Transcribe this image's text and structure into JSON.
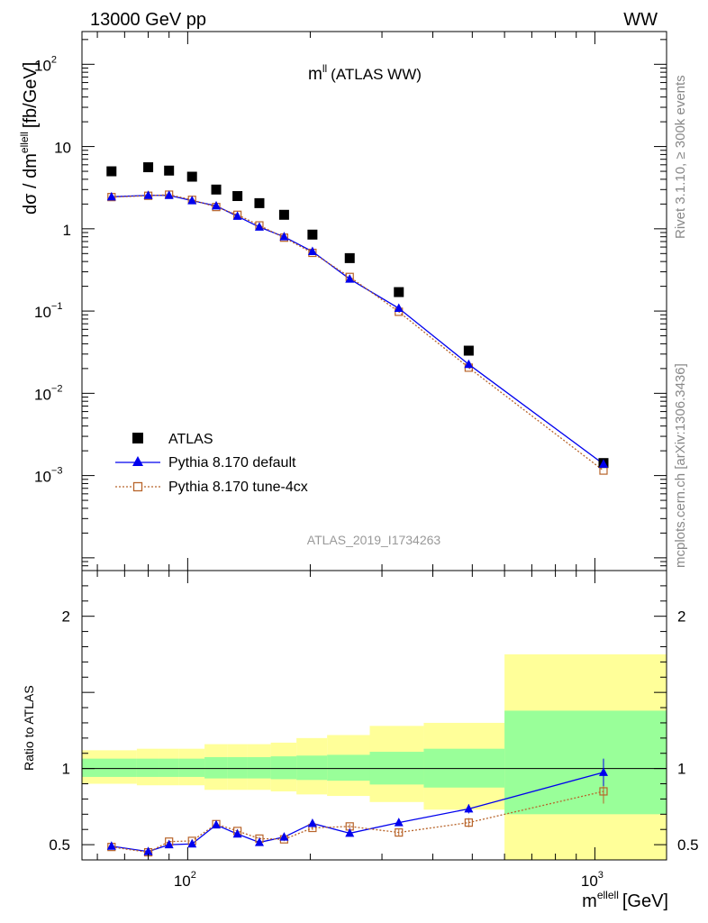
{
  "header": {
    "left": "13000 GeV pp",
    "right": "WW"
  },
  "side": {
    "rivet": "Rivet 3.1.10, ≥ 300k events",
    "mcplots": "mcplots.cern.ch [arXiv:1306.3436]"
  },
  "watermark": "ATLAS_2019_I1734263",
  "chart_data": {
    "type": "scatter",
    "title": "m",
    "title_sup": "ll",
    "title_suffix": "(ATLAS WW)",
    "xlabel": "m",
    "xlabel_sup": "ellell",
    "xlabel_unit": "[GeV]",
    "ylabel": "dσ / dm",
    "ylabel_sup": "ellell",
    "ylabel_unit": "[fb/GeV]",
    "xscale": "log",
    "yscale": "log",
    "xlim": [
      55,
      1500
    ],
    "ylim": [
      7e-05,
      250
    ],
    "x_ticks": [
      {
        "value": 100,
        "base": "10",
        "exp": "2"
      },
      {
        "value": 1000,
        "base": "10",
        "exp": "3"
      }
    ],
    "y_ticks": [
      {
        "value": 100,
        "base": "10",
        "exp": "2"
      },
      {
        "value": 10,
        "base": "10",
        "exp": ""
      },
      {
        "value": 1,
        "base": "1",
        "exp": ""
      },
      {
        "value": 0.1,
        "base": "10",
        "exp": "−1"
      },
      {
        "value": 0.01,
        "base": "10",
        "exp": "−2"
      },
      {
        "value": 0.001,
        "base": "10",
        "exp": "−3"
      }
    ],
    "legend_position": "bottom-left",
    "bin_edges": [
      55,
      75,
      85,
      95,
      110,
      125,
      140,
      160,
      185,
      220,
      280,
      380,
      600,
      1500
    ],
    "x": [
      65,
      80,
      90,
      102.5,
      117.5,
      132.5,
      150,
      172.5,
      202.5,
      250,
      330,
      490,
      1050
    ],
    "series": [
      {
        "name": "ATLAS",
        "color": "#000000",
        "marker": "square",
        "values": [
          5.0,
          5.6,
          5.1,
          4.3,
          3.0,
          2.5,
          2.05,
          1.48,
          0.85,
          0.44,
          0.17,
          0.033,
          0.00142
        ]
      },
      {
        "name": "Pythia 8.170 default",
        "color": "#0000ee",
        "marker": "triangle",
        "values": [
          2.45,
          2.55,
          2.55,
          2.2,
          1.9,
          1.42,
          1.05,
          0.8,
          0.53,
          0.245,
          0.108,
          0.0225,
          0.00138
        ]
      },
      {
        "name": "Pythia 8.170 tune-4cx",
        "color": "#b8642a",
        "marker": "open-square",
        "values": [
          2.43,
          2.52,
          2.6,
          2.25,
          1.84,
          1.48,
          1.1,
          0.78,
          0.51,
          0.26,
          0.098,
          0.0205,
          0.00115
        ]
      }
    ],
    "ratio": {
      "ylabel": "Ratio to ATLAS",
      "ylim": [
        0.4,
        2.3
      ],
      "y_ticks": [
        0.5,
        1,
        2
      ],
      "band_inner": [
        {
          "lo": 0.945,
          "hi": 1.065
        },
        {
          "lo": 0.945,
          "hi": 1.065
        },
        {
          "lo": 0.945,
          "hi": 1.065
        },
        {
          "lo": 0.945,
          "hi": 1.065
        },
        {
          "lo": 0.935,
          "hi": 1.075
        },
        {
          "lo": 0.935,
          "hi": 1.075
        },
        {
          "lo": 0.935,
          "hi": 1.075
        },
        {
          "lo": 0.93,
          "hi": 1.08
        },
        {
          "lo": 0.925,
          "hi": 1.085
        },
        {
          "lo": 0.92,
          "hi": 1.09
        },
        {
          "lo": 0.895,
          "hi": 1.11
        },
        {
          "lo": 0.875,
          "hi": 1.13
        },
        {
          "lo": 0.7,
          "hi": 1.38
        }
      ],
      "band_outer": [
        {
          "lo": 0.9,
          "hi": 1.12
        },
        {
          "lo": 0.89,
          "hi": 1.13
        },
        {
          "lo": 0.89,
          "hi": 1.13
        },
        {
          "lo": 0.89,
          "hi": 1.13
        },
        {
          "lo": 0.86,
          "hi": 1.16
        },
        {
          "lo": 0.86,
          "hi": 1.16
        },
        {
          "lo": 0.86,
          "hi": 1.16
        },
        {
          "lo": 0.85,
          "hi": 1.17
        },
        {
          "lo": 0.83,
          "hi": 1.2
        },
        {
          "lo": 0.82,
          "hi": 1.22
        },
        {
          "lo": 0.78,
          "hi": 1.28
        },
        {
          "lo": 0.73,
          "hi": 1.3
        },
        {
          "lo": 0.4,
          "hi": 1.75
        }
      ],
      "series": [
        {
          "name": "Pythia 8.170 default",
          "values": [
            0.49,
            0.455,
            0.5,
            0.505,
            0.63,
            0.57,
            0.515,
            0.55,
            0.64,
            0.575,
            0.645,
            0.735,
            0.975
          ],
          "errors": [
            0.01,
            0.01,
            0.01,
            0.01,
            0.012,
            0.012,
            0.012,
            0.012,
            0.014,
            0.015,
            0.02,
            0.03,
            0.09
          ]
        },
        {
          "name": "Pythia 8.170 tune-4cx",
          "values": [
            0.485,
            0.45,
            0.52,
            0.525,
            0.635,
            0.59,
            0.54,
            0.535,
            0.61,
            0.62,
            0.58,
            0.645,
            0.85
          ],
          "errors": [
            0.01,
            0.01,
            0.01,
            0.01,
            0.012,
            0.012,
            0.012,
            0.012,
            0.014,
            0.015,
            0.02,
            0.03,
            0.08
          ]
        }
      ]
    }
  }
}
